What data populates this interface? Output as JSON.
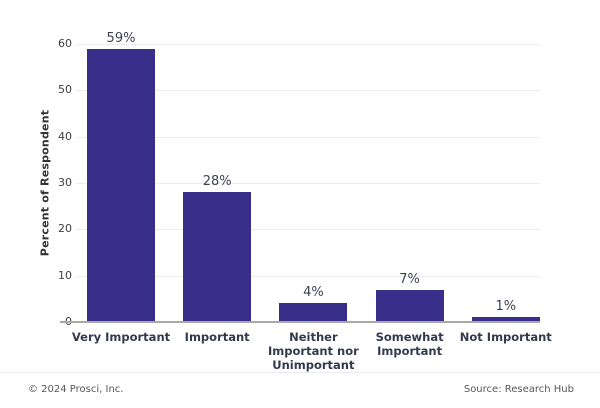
{
  "chart_data": {
    "type": "bar",
    "title": "",
    "categories": [
      "Very Important",
      "Important",
      "Neither Important nor Unimportant",
      "Somewhat Important",
      "Not Important"
    ],
    "category_display": [
      "Very Important",
      "Important",
      "Neither\nImportant nor\nUnimportant",
      "Somewhat\nImportant",
      "Not Important"
    ],
    "values": [
      59,
      28,
      4,
      7,
      1
    ],
    "value_labels": [
      "59%",
      "28%",
      "4%",
      "7%",
      "1%"
    ],
    "xlabel": "",
    "ylabel": "Percent of Respondent",
    "ylim": [
      0,
      60
    ],
    "yticks": [
      0,
      10,
      20,
      30,
      40,
      50,
      60
    ],
    "grid": "horizontal",
    "legend": "none"
  },
  "footer": {
    "left": "© 2024 Prosci, Inc.",
    "right": "Source: Research Hub"
  },
  "colors": {
    "bar": "#392F8A",
    "grid": "#ECECEC",
    "baseline": "#A9A9A9",
    "tick": "#404040",
    "category_label": "#333A4D",
    "value_label": "#3C4353",
    "y_title": "#333333",
    "footer": "#595959"
  }
}
